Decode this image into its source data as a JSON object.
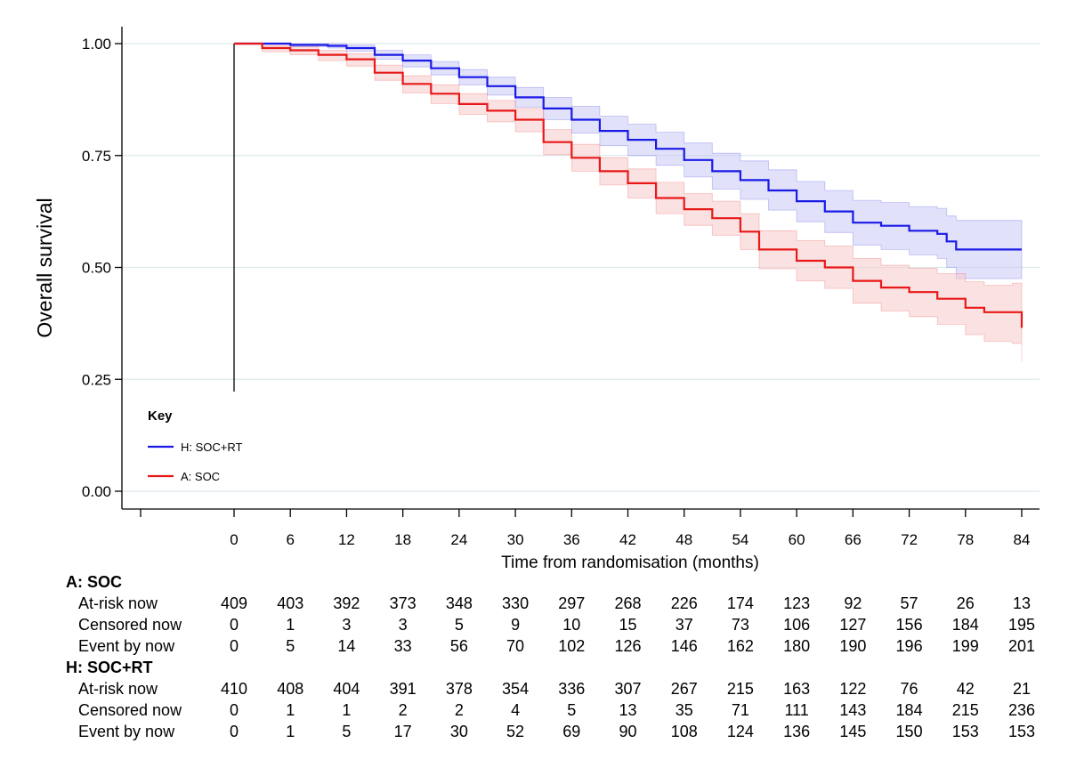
{
  "chart_data": {
    "type": "line",
    "ylabel": "Overall survival",
    "xlabel": "Time from randomisation (months)",
    "xlim": [
      -17,
      86
    ],
    "ylim": [
      0,
      1.05
    ],
    "x_ticks": [
      0,
      6,
      12,
      18,
      24,
      30,
      36,
      42,
      48,
      54,
      60,
      66,
      72,
      78,
      84
    ],
    "y_ticks": [
      0.0,
      0.25,
      0.5,
      0.75,
      1.0
    ],
    "y_tick_labels": [
      "0.00",
      "0.25",
      "0.50",
      "0.75",
      "1.00"
    ],
    "grid": "horizontal",
    "colors": {
      "H": "#1a1ae6",
      "A": "#e81818",
      "H_band": "#c8c8f5",
      "A_band": "#f8caca",
      "grid": "#dde8ec"
    },
    "legend": {
      "title": "Key",
      "position": "bottom-left",
      "entries": [
        {
          "label": "H: SOC+RT",
          "color": "#1a1ae6"
        },
        {
          "label": "A: SOC",
          "color": "#e81818"
        }
      ]
    },
    "series": [
      {
        "name": "H: SOC+RT",
        "color": "#1a1ae6",
        "x": [
          0,
          6,
          10,
          12,
          15,
          18,
          21,
          24,
          27,
          30,
          33,
          36,
          39,
          42,
          45,
          48,
          51,
          54,
          57,
          60,
          63,
          66,
          69,
          72,
          75,
          76,
          77,
          80,
          84
        ],
        "y": [
          1.0,
          0.997,
          0.995,
          0.99,
          0.975,
          0.962,
          0.945,
          0.925,
          0.905,
          0.88,
          0.855,
          0.83,
          0.805,
          0.785,
          0.765,
          0.74,
          0.715,
          0.695,
          0.672,
          0.648,
          0.625,
          0.6,
          0.593,
          0.582,
          0.575,
          0.558,
          0.54,
          0.54,
          0.54
        ],
        "lower": [
          1.0,
          0.993,
          0.99,
          0.983,
          0.965,
          0.948,
          0.93,
          0.908,
          0.885,
          0.858,
          0.83,
          0.8,
          0.772,
          0.75,
          0.728,
          0.702,
          0.675,
          0.652,
          0.628,
          0.602,
          0.578,
          0.55,
          0.54,
          0.528,
          0.52,
          0.5,
          0.475,
          0.475,
          0.475
        ],
        "upper": [
          1.0,
          1.0,
          1.0,
          0.997,
          0.985,
          0.975,
          0.96,
          0.942,
          0.925,
          0.902,
          0.88,
          0.86,
          0.838,
          0.82,
          0.802,
          0.778,
          0.755,
          0.738,
          0.718,
          0.692,
          0.672,
          0.65,
          0.645,
          0.636,
          0.632,
          0.615,
          0.605,
          0.605,
          0.605
        ]
      },
      {
        "name": "A: SOC",
        "color": "#e81818",
        "x": [
          0,
          3,
          6,
          9,
          12,
          15,
          18,
          21,
          24,
          27,
          30,
          33,
          36,
          39,
          42,
          45,
          48,
          51,
          54,
          56,
          60,
          63,
          66,
          69,
          72,
          75,
          78,
          80,
          83,
          84
        ],
        "y": [
          1.0,
          0.99,
          0.985,
          0.975,
          0.965,
          0.935,
          0.91,
          0.888,
          0.865,
          0.85,
          0.83,
          0.78,
          0.745,
          0.715,
          0.688,
          0.655,
          0.63,
          0.61,
          0.58,
          0.54,
          0.515,
          0.5,
          0.47,
          0.455,
          0.445,
          0.43,
          0.41,
          0.4,
          0.4,
          0.365
        ],
        "lower": [
          1.0,
          0.982,
          0.975,
          0.962,
          0.95,
          0.918,
          0.89,
          0.866,
          0.842,
          0.825,
          0.803,
          0.752,
          0.715,
          0.684,
          0.655,
          0.62,
          0.594,
          0.572,
          0.54,
          0.497,
          0.47,
          0.453,
          0.42,
          0.403,
          0.39,
          0.373,
          0.35,
          0.335,
          0.33,
          0.29
        ],
        "upper": [
          1.0,
          0.996,
          0.993,
          0.985,
          0.978,
          0.952,
          0.928,
          0.908,
          0.888,
          0.873,
          0.855,
          0.808,
          0.775,
          0.745,
          0.72,
          0.69,
          0.665,
          0.648,
          0.62,
          0.582,
          0.56,
          0.548,
          0.52,
          0.505,
          0.498,
          0.486,
          0.468,
          0.46,
          0.465,
          0.44
        ]
      }
    ]
  },
  "risk_table": {
    "groups": [
      {
        "title": "A: SOC",
        "rows": [
          {
            "label": "At-risk now",
            "values": [
              409,
              403,
              392,
              373,
              348,
              330,
              297,
              268,
              226,
              174,
              123,
              92,
              57,
              26,
              13
            ]
          },
          {
            "label": "Censored now",
            "values": [
              0,
              1,
              3,
              3,
              5,
              9,
              10,
              15,
              37,
              73,
              106,
              127,
              156,
              184,
              195
            ]
          },
          {
            "label": "Event by now",
            "values": [
              0,
              5,
              14,
              33,
              56,
              70,
              102,
              126,
              146,
              162,
              180,
              190,
              196,
              199,
              201
            ]
          }
        ]
      },
      {
        "title": "H: SOC+RT",
        "rows": [
          {
            "label": "At-risk now",
            "values": [
              410,
              408,
              404,
              391,
              378,
              354,
              336,
              307,
              267,
              215,
              163,
              122,
              76,
              42,
              21
            ]
          },
          {
            "label": "Censored now",
            "values": [
              0,
              1,
              1,
              2,
              2,
              4,
              5,
              13,
              35,
              71,
              111,
              143,
              184,
              215,
              236
            ]
          },
          {
            "label": "Event by now",
            "values": [
              0,
              1,
              5,
              17,
              30,
              52,
              69,
              90,
              108,
              124,
              136,
              145,
              150,
              153,
              153
            ]
          }
        ]
      }
    ]
  }
}
